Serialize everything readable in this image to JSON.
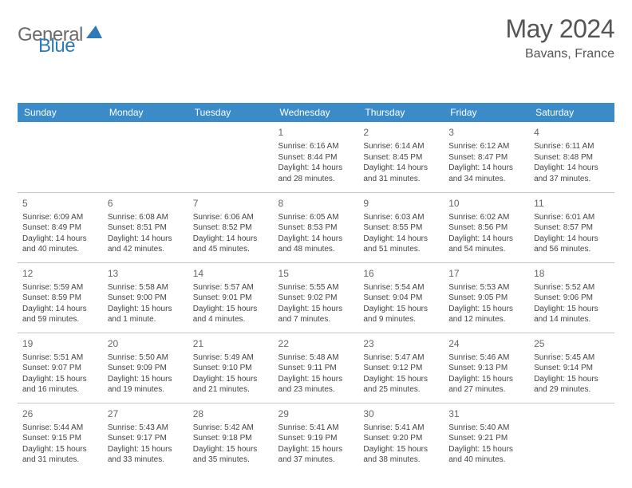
{
  "logo": {
    "part1": "General",
    "part2": "Blue"
  },
  "title": "May 2024",
  "subtitle": "Bavans, France",
  "colors": {
    "header_bg": "#3b8bc9",
    "header_text": "#ffffff",
    "border": "#c8c8c8",
    "text": "#444444",
    "page_bg": "#ffffff"
  },
  "weekdays": [
    "Sunday",
    "Monday",
    "Tuesday",
    "Wednesday",
    "Thursday",
    "Friday",
    "Saturday"
  ],
  "weeks": [
    [
      null,
      null,
      null,
      {
        "d": "1",
        "sr": "6:16 AM",
        "ss": "8:44 PM",
        "dl": "14 hours and 28 minutes."
      },
      {
        "d": "2",
        "sr": "6:14 AM",
        "ss": "8:45 PM",
        "dl": "14 hours and 31 minutes."
      },
      {
        "d": "3",
        "sr": "6:12 AM",
        "ss": "8:47 PM",
        "dl": "14 hours and 34 minutes."
      },
      {
        "d": "4",
        "sr": "6:11 AM",
        "ss": "8:48 PM",
        "dl": "14 hours and 37 minutes."
      }
    ],
    [
      {
        "d": "5",
        "sr": "6:09 AM",
        "ss": "8:49 PM",
        "dl": "14 hours and 40 minutes."
      },
      {
        "d": "6",
        "sr": "6:08 AM",
        "ss": "8:51 PM",
        "dl": "14 hours and 42 minutes."
      },
      {
        "d": "7",
        "sr": "6:06 AM",
        "ss": "8:52 PM",
        "dl": "14 hours and 45 minutes."
      },
      {
        "d": "8",
        "sr": "6:05 AM",
        "ss": "8:53 PM",
        "dl": "14 hours and 48 minutes."
      },
      {
        "d": "9",
        "sr": "6:03 AM",
        "ss": "8:55 PM",
        "dl": "14 hours and 51 minutes."
      },
      {
        "d": "10",
        "sr": "6:02 AM",
        "ss": "8:56 PM",
        "dl": "14 hours and 54 minutes."
      },
      {
        "d": "11",
        "sr": "6:01 AM",
        "ss": "8:57 PM",
        "dl": "14 hours and 56 minutes."
      }
    ],
    [
      {
        "d": "12",
        "sr": "5:59 AM",
        "ss": "8:59 PM",
        "dl": "14 hours and 59 minutes."
      },
      {
        "d": "13",
        "sr": "5:58 AM",
        "ss": "9:00 PM",
        "dl": "15 hours and 1 minute."
      },
      {
        "d": "14",
        "sr": "5:57 AM",
        "ss": "9:01 PM",
        "dl": "15 hours and 4 minutes."
      },
      {
        "d": "15",
        "sr": "5:55 AM",
        "ss": "9:02 PM",
        "dl": "15 hours and 7 minutes."
      },
      {
        "d": "16",
        "sr": "5:54 AM",
        "ss": "9:04 PM",
        "dl": "15 hours and 9 minutes."
      },
      {
        "d": "17",
        "sr": "5:53 AM",
        "ss": "9:05 PM",
        "dl": "15 hours and 12 minutes."
      },
      {
        "d": "18",
        "sr": "5:52 AM",
        "ss": "9:06 PM",
        "dl": "15 hours and 14 minutes."
      }
    ],
    [
      {
        "d": "19",
        "sr": "5:51 AM",
        "ss": "9:07 PM",
        "dl": "15 hours and 16 minutes."
      },
      {
        "d": "20",
        "sr": "5:50 AM",
        "ss": "9:09 PM",
        "dl": "15 hours and 19 minutes."
      },
      {
        "d": "21",
        "sr": "5:49 AM",
        "ss": "9:10 PM",
        "dl": "15 hours and 21 minutes."
      },
      {
        "d": "22",
        "sr": "5:48 AM",
        "ss": "9:11 PM",
        "dl": "15 hours and 23 minutes."
      },
      {
        "d": "23",
        "sr": "5:47 AM",
        "ss": "9:12 PM",
        "dl": "15 hours and 25 minutes."
      },
      {
        "d": "24",
        "sr": "5:46 AM",
        "ss": "9:13 PM",
        "dl": "15 hours and 27 minutes."
      },
      {
        "d": "25",
        "sr": "5:45 AM",
        "ss": "9:14 PM",
        "dl": "15 hours and 29 minutes."
      }
    ],
    [
      {
        "d": "26",
        "sr": "5:44 AM",
        "ss": "9:15 PM",
        "dl": "15 hours and 31 minutes."
      },
      {
        "d": "27",
        "sr": "5:43 AM",
        "ss": "9:17 PM",
        "dl": "15 hours and 33 minutes."
      },
      {
        "d": "28",
        "sr": "5:42 AM",
        "ss": "9:18 PM",
        "dl": "15 hours and 35 minutes."
      },
      {
        "d": "29",
        "sr": "5:41 AM",
        "ss": "9:19 PM",
        "dl": "15 hours and 37 minutes."
      },
      {
        "d": "30",
        "sr": "5:41 AM",
        "ss": "9:20 PM",
        "dl": "15 hours and 38 minutes."
      },
      {
        "d": "31",
        "sr": "5:40 AM",
        "ss": "9:21 PM",
        "dl": "15 hours and 40 minutes."
      },
      null
    ]
  ],
  "labels": {
    "sunrise": "Sunrise: ",
    "sunset": "Sunset: ",
    "daylight": "Daylight: "
  }
}
